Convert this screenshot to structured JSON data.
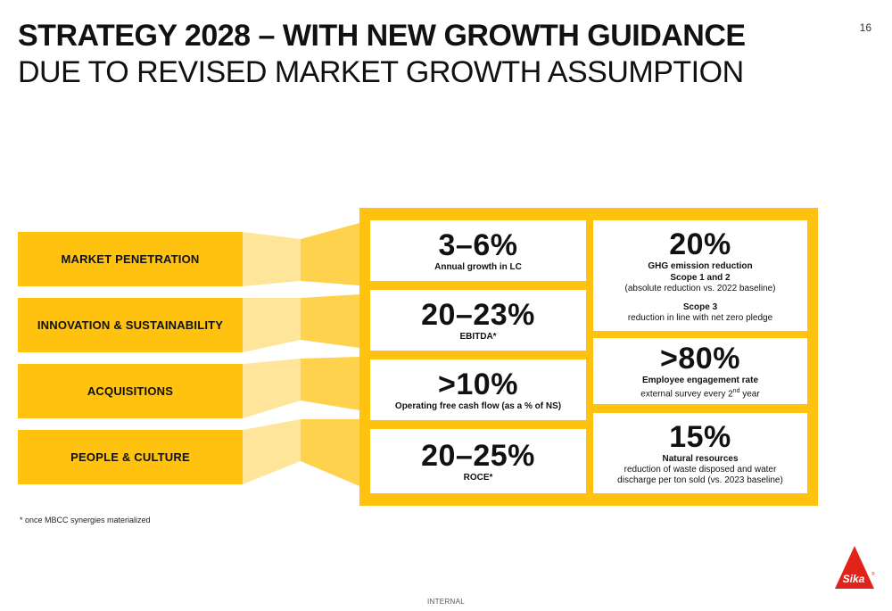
{
  "page_number": "16",
  "title": {
    "main": "STRATEGY 2028 – WITH NEW GROWTH GUIDANCE",
    "sub": "DUE TO REVISED MARKET GROWTH ASSUMPTION"
  },
  "pillars": [
    "MARKET PENETRATION",
    "INNOVATION & SUSTAINABILITY",
    "ACQUISITIONS",
    "PEOPLE & CULTURE"
  ],
  "financial_targets": [
    {
      "value": "3–6%",
      "label": "Annual growth in LC"
    },
    {
      "value": "20–23%",
      "label": "EBITDA*"
    },
    {
      "value": ">10%",
      "label": "Operating free cash flow (as a % of NS)"
    },
    {
      "value": "20–25%",
      "label": "ROCE*"
    }
  ],
  "sustainability_targets": {
    "ghg": {
      "value": "20%",
      "label": "GHG emission reduction",
      "scope12": "Scope 1 and 2",
      "scope12_desc": "(absolute reduction vs. 2022 baseline)",
      "scope3": "Scope 3",
      "scope3_desc": "reduction in line with net zero pledge"
    },
    "engagement": {
      "value": ">80%",
      "label": "Employee engagement rate",
      "desc_pre": "external survey every 2",
      "desc_sup": "nd",
      "desc_post": " year"
    },
    "resources": {
      "value": "15%",
      "label": "Natural resources",
      "desc1": "reduction of waste disposed and water",
      "desc2": "discharge per ton sold (vs. 2023 baseline)"
    }
  },
  "footnote": "* once MBCC synergies materialized",
  "classification": "INTERNAL",
  "brand": {
    "name": "Sika",
    "primary_yellow": "#FFC20E",
    "logo_red": "#E2231A"
  }
}
